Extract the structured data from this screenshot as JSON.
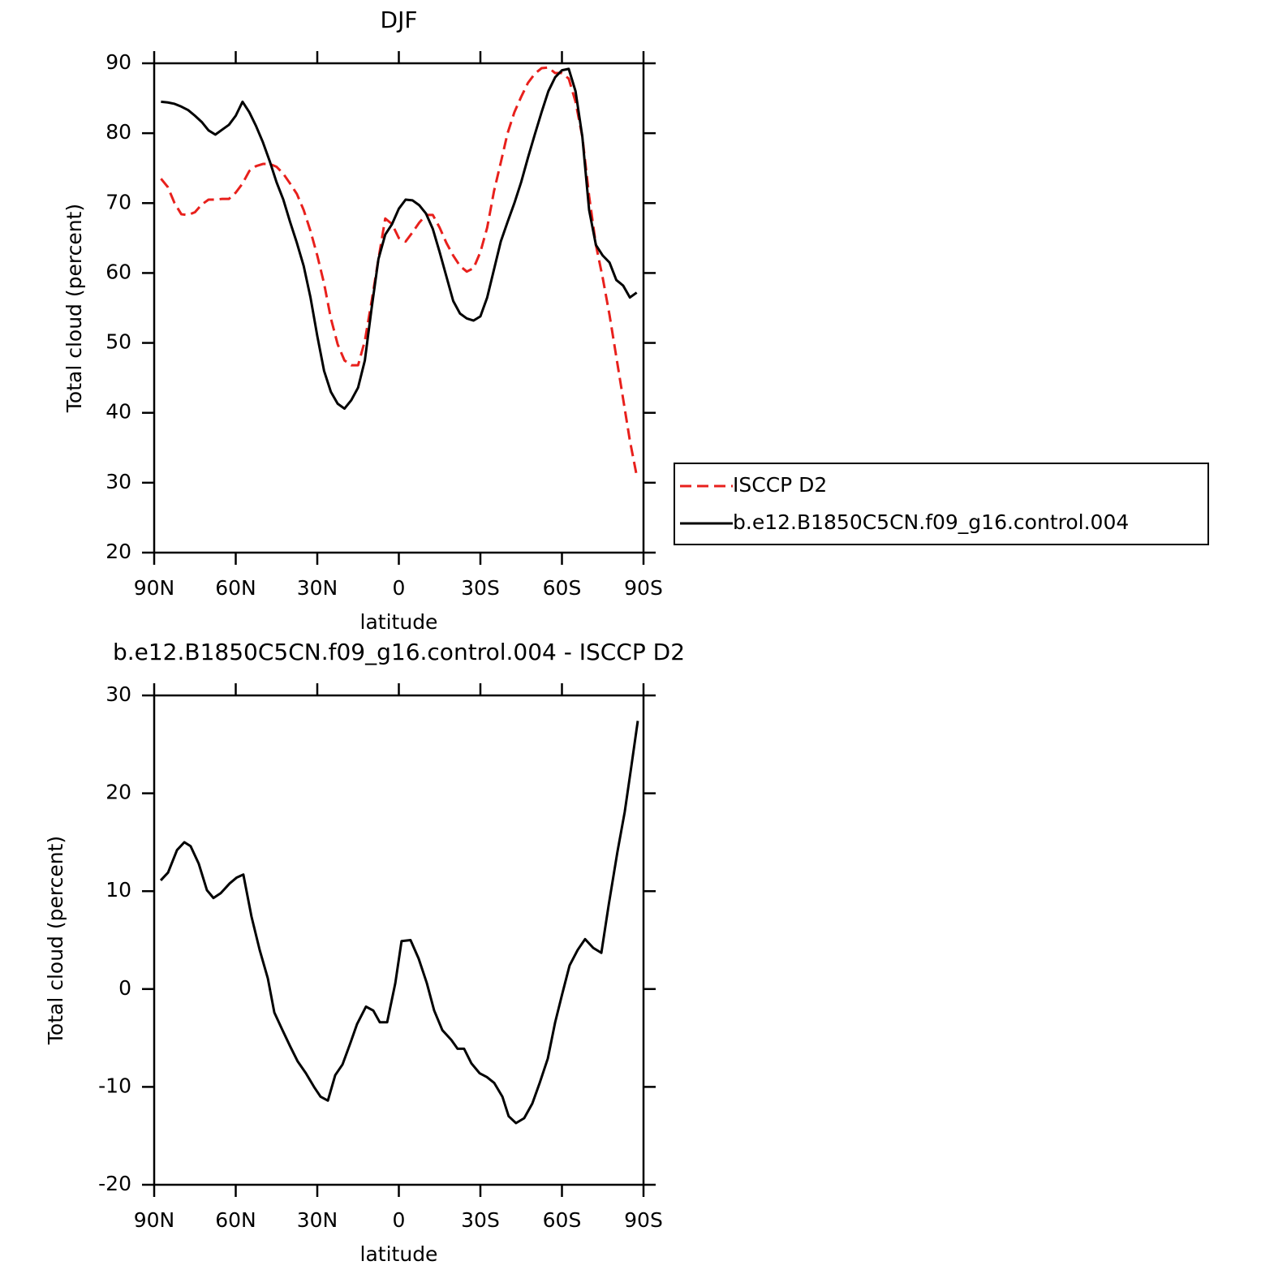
{
  "chart_data": [
    {
      "type": "line",
      "title": "DJF",
      "xlabel": "latitude",
      "ylabel": "Total cloud (percent)",
      "x": [
        87.5,
        85,
        82.5,
        80,
        77.5,
        75,
        72.5,
        70,
        67.5,
        65,
        62.5,
        60,
        57.5,
        55,
        52.5,
        50,
        47.5,
        45,
        42.5,
        40,
        37.5,
        35,
        32.5,
        30,
        27.5,
        25,
        22.5,
        20,
        17.5,
        15,
        12.5,
        10,
        7.5,
        5,
        2.5,
        0,
        -2.5,
        -5,
        -7.5,
        -10,
        -12.5,
        -15,
        -17.5,
        -20,
        -22.5,
        -25,
        -27.5,
        -30,
        -32.5,
        -35,
        -37.5,
        -40,
        -42.5,
        -45,
        -47.5,
        -50,
        -52.5,
        -55,
        -57.5,
        -60,
        -62.5,
        -65,
        -67.5,
        -70,
        -72.5,
        -75,
        -77.5,
        -80,
        -82.5,
        -85,
        -87.5
      ],
      "series": [
        {
          "name": "ISCCP D2",
          "color": "#e8201c",
          "line_style": "dashed",
          "values": [
            73.5,
            72.3,
            70,
            68.4,
            68.3,
            68.7,
            69.8,
            70.5,
            70.5,
            70.6,
            70.6,
            71.5,
            72.8,
            74.6,
            75.3,
            75.6,
            75.6,
            75.2,
            74.2,
            72.8,
            71.3,
            69,
            66,
            62.5,
            58.5,
            53.5,
            49.8,
            47.5,
            46.8,
            46.8,
            50.3,
            56,
            62,
            67.8,
            67,
            65,
            64.5,
            65.8,
            67.2,
            68.3,
            68.3,
            66.5,
            64.3,
            62.5,
            61,
            60.2,
            60.7,
            63,
            66.5,
            71.7,
            75.8,
            80,
            83,
            85.2,
            87.2,
            88.5,
            89.3,
            89.4,
            88.6,
            88.6,
            87.8,
            84.5,
            79.5,
            71,
            64,
            59.3,
            54,
            48,
            42,
            36,
            31
          ]
        },
        {
          "name": "b.e12.B1850C5CN.f09_g16.control.004",
          "color": "#000000",
          "line_style": "solid",
          "values": [
            84.5,
            84.4,
            84.2,
            83.8,
            83.3,
            82.5,
            81.6,
            80.4,
            79.8,
            80.5,
            81.2,
            82.5,
            84.5,
            83,
            81,
            78.7,
            76,
            73,
            70.5,
            67.3,
            64.3,
            61,
            56.5,
            51,
            46,
            43,
            41.3,
            40.6,
            41.8,
            43.6,
            47.5,
            55,
            62,
            65.5,
            67,
            69.2,
            70.5,
            70.4,
            69.7,
            68.5,
            66.3,
            63,
            59.5,
            56,
            54.2,
            53.5,
            53.2,
            53.8,
            56.5,
            60.5,
            64.5,
            67.3,
            70,
            73,
            76.5,
            79.8,
            83,
            86,
            88,
            89,
            89.2,
            86,
            79.5,
            69,
            64,
            62.5,
            61.5,
            59,
            58.2,
            56.5,
            57.2
          ]
        }
      ],
      "xlim": [
        90,
        -90
      ],
      "xticks": [
        {
          "value": 90,
          "label": "90N"
        },
        {
          "value": 60,
          "label": "60N"
        },
        {
          "value": 30,
          "label": "30N"
        },
        0,
        {
          "value": -30,
          "label": "30S"
        },
        {
          "value": -60,
          "label": "60S"
        },
        {
          "value": -90,
          "label": "90S"
        }
      ],
      "ylim": [
        20,
        90
      ],
      "yticks": [
        20,
        30,
        40,
        50,
        60,
        70,
        80,
        90
      ],
      "legend": "right"
    },
    {
      "type": "line",
      "title": "b.e12.B1850C5CN.f09_g16.control.004 - ISCCP D2",
      "xlabel": "latitude",
      "ylabel": "Total cloud (percent)",
      "x": [
        87.6,
        84.9,
        81.6,
        78.9,
        76.6,
        73.6,
        70.6,
        68.2,
        65.5,
        62.2,
        59.6,
        57.2,
        54.2,
        51.2,
        48.2,
        45.8,
        42.8,
        39.9,
        37.2,
        34.2,
        31.2,
        28.8,
        26.1,
        23.4,
        20.7,
        17.8,
        15.4,
        12.1,
        9.4,
        7.0,
        4.3,
        1.3,
        -1.0,
        -4.3,
        -7.3,
        -10.3,
        -13,
        -16,
        -19.3,
        -21.6,
        -24,
        -26.7,
        -29.7,
        -32.4,
        -35.1,
        -38.1,
        -40.4,
        -43.1,
        -46.1,
        -49.1,
        -51.8,
        -54.8,
        -57.5,
        -60.1,
        -62.8,
        -65.8,
        -68.5,
        -71.5,
        -74.5,
        -77.2,
        -80.4,
        -83.1,
        -85.5,
        -87.9
      ],
      "values": [
        11.1,
        11.9,
        14.2,
        15.0,
        14.6,
        12.8,
        10.1,
        9.3,
        9.8,
        10.8,
        11.4,
        11.7,
        7.4,
        4.0,
        1.1,
        -2.4,
        -4.2,
        -5.9,
        -7.4,
        -8.6,
        -10,
        -11,
        -11.4,
        -8.8,
        -7.7,
        -5.5,
        -3.6,
        -1.8,
        -2.2,
        -3.4,
        -3.4,
        0.6,
        4.9,
        5.0,
        3.1,
        0.6,
        -2.2,
        -4.2,
        -5.2,
        -6.1,
        -6.1,
        -7.6,
        -8.6,
        -9.0,
        -9.6,
        -11,
        -13,
        -13.7,
        -13.2,
        -11.7,
        -9.6,
        -7.1,
        -3.4,
        -0.5,
        2.4,
        4.0,
        5.1,
        4.2,
        3.7,
        8.6,
        14,
        18.1,
        22.7,
        27.4
      ],
      "color": "#000000",
      "xlim": [
        90,
        -90
      ],
      "xticks": [
        {
          "value": 90,
          "label": "90N"
        },
        {
          "value": 60,
          "label": "60N"
        },
        {
          "value": 30,
          "label": "30N"
        },
        0,
        {
          "value": -30,
          "label": "30S"
        },
        {
          "value": -60,
          "label": "60S"
        },
        {
          "value": -90,
          "label": "90S"
        }
      ],
      "ylim": [
        -20,
        30
      ],
      "yticks": [
        -20,
        -10,
        0,
        10,
        20,
        30
      ]
    }
  ]
}
